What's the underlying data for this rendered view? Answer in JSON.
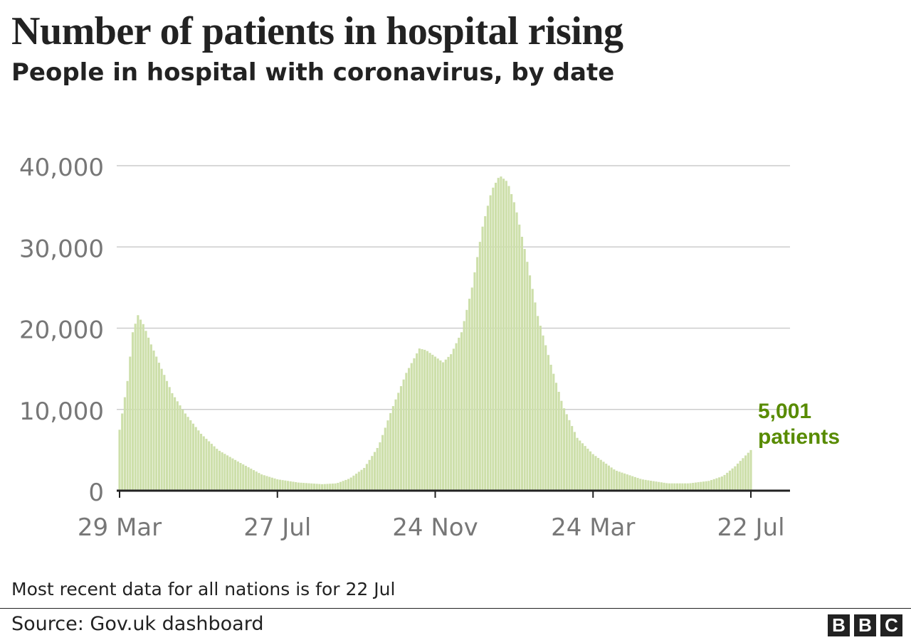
{
  "title": "Number of patients in hospital rising",
  "subtitle": "People in hospital with coronavirus, by date",
  "note": "Most recent data for all nations is for 22 Jul",
  "source": "Source: Gov.uk dashboard",
  "logo": [
    "B",
    "B",
    "C"
  ],
  "colors": {
    "bar": "#cddfaa",
    "annotation": "#588b00",
    "grid": "#cccccc",
    "axis": "#222222",
    "tick": "#777777"
  },
  "chart_data": {
    "type": "bar",
    "title": "Number of patients in hospital rising",
    "subtitle": "People in hospital with coronavirus, by date",
    "xlabel": "",
    "ylabel": "",
    "ylim": [
      0,
      40000
    ],
    "yticks": [
      0,
      10000,
      20000,
      30000,
      40000
    ],
    "ytick_labels": [
      "0",
      "10,000",
      "20,000",
      "30,000",
      "40,000"
    ],
    "xlim": [
      "2020-03-29",
      "2021-07-22"
    ],
    "xticks": [
      {
        "date": "2020-03-29",
        "label": "29 Mar"
      },
      {
        "date": "2020-07-27",
        "label": "27 Jul"
      },
      {
        "date": "2020-11-24",
        "label": "24 Nov"
      },
      {
        "date": "2021-03-24",
        "label": "24 Mar"
      },
      {
        "date": "2021-07-22",
        "label": "22 Jul"
      }
    ],
    "grid": true,
    "bar_interval_days": 2,
    "series": [
      {
        "points": [
          [
            "2020-03-29",
            7500
          ],
          [
            "2020-04-04",
            13500
          ],
          [
            "2020-04-08",
            19500
          ],
          [
            "2020-04-12",
            21600
          ],
          [
            "2020-04-16",
            20500
          ],
          [
            "2020-04-22",
            18000
          ],
          [
            "2020-04-30",
            15000
          ],
          [
            "2020-05-08",
            12000
          ],
          [
            "2020-05-18",
            9500
          ],
          [
            "2020-05-30",
            7000
          ],
          [
            "2020-06-12",
            5000
          ],
          [
            "2020-06-28",
            3500
          ],
          [
            "2020-07-15",
            2000
          ],
          [
            "2020-07-27",
            1400
          ],
          [
            "2020-08-12",
            1000
          ],
          [
            "2020-08-30",
            800
          ],
          [
            "2020-09-10",
            900
          ],
          [
            "2020-09-20",
            1500
          ],
          [
            "2020-10-01",
            2800
          ],
          [
            "2020-10-12",
            5500
          ],
          [
            "2020-10-22",
            10000
          ],
          [
            "2020-11-02",
            14500
          ],
          [
            "2020-11-12",
            17500
          ],
          [
            "2020-11-17",
            17300
          ],
          [
            "2020-11-24",
            16500
          ],
          [
            "2020-11-30",
            15800
          ],
          [
            "2020-12-06",
            16800
          ],
          [
            "2020-12-14",
            19500
          ],
          [
            "2020-12-22",
            25000
          ],
          [
            "2020-12-30",
            32500
          ],
          [
            "2021-01-06",
            37000
          ],
          [
            "2021-01-12",
            38800
          ],
          [
            "2021-01-18",
            38000
          ],
          [
            "2021-01-24",
            35000
          ],
          [
            "2021-02-01",
            29000
          ],
          [
            "2021-02-10",
            21500
          ],
          [
            "2021-02-20",
            15500
          ],
          [
            "2021-03-01",
            10500
          ],
          [
            "2021-03-12",
            6500
          ],
          [
            "2021-03-24",
            4500
          ],
          [
            "2021-04-10",
            2500
          ],
          [
            "2021-04-30",
            1400
          ],
          [
            "2021-05-20",
            900
          ],
          [
            "2021-06-05",
            900
          ],
          [
            "2021-06-20",
            1200
          ],
          [
            "2021-07-01",
            1800
          ],
          [
            "2021-07-10",
            3000
          ],
          [
            "2021-07-22",
            5001
          ]
        ]
      }
    ],
    "annotation": {
      "date": "2021-07-22",
      "lines": [
        "5,001",
        "patients"
      ]
    }
  }
}
